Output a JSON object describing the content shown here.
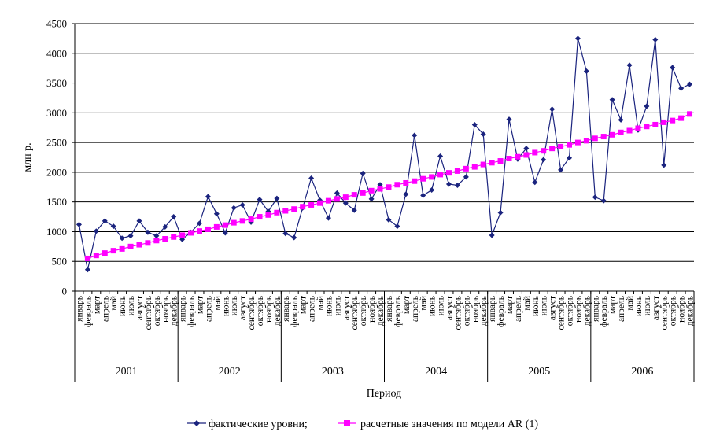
{
  "chart_data": {
    "type": "line",
    "ylabel": "млн р.",
    "xlabel": "Период",
    "ylim": [
      0,
      4500
    ],
    "yticks": [
      0,
      500,
      1000,
      1500,
      2000,
      2500,
      3000,
      3500,
      4000,
      4500
    ],
    "grid": "horizontal",
    "legend_position": "bottom",
    "years": [
      "2001",
      "2002",
      "2003",
      "2004",
      "2005",
      "2006"
    ],
    "months": [
      "январь",
      "февраль",
      "март",
      "апрель",
      "май",
      "июнь",
      "июль",
      "август",
      "сентябрь",
      "октябрь",
      "ноябрь",
      "декабрь"
    ],
    "series": [
      {
        "name": "фактические уровни;",
        "color": "#1a237e",
        "marker": "diamond",
        "values": [
          1120,
          360,
          1010,
          1180,
          1090,
          890,
          930,
          1180,
          990,
          930,
          1080,
          1250,
          870,
          990,
          1140,
          1590,
          1300,
          980,
          1400,
          1450,
          1160,
          1540,
          1340,
          1560,
          970,
          900,
          1400,
          1900,
          1530,
          1230,
          1650,
          1480,
          1360,
          1980,
          1550,
          1790,
          1200,
          1090,
          1630,
          2620,
          1610,
          1700,
          2270,
          1800,
          1780,
          1920,
          2800,
          2640,
          940,
          1320,
          2890,
          2220,
          2400,
          1830,
          2210,
          3060,
          2040,
          2240,
          4250,
          3700,
          1580,
          1520,
          3220,
          2880,
          3800,
          2710,
          3110,
          4230,
          2120,
          3760,
          3410,
          3480
        ]
      },
      {
        "name": "расчетные значения по модели AR (1)",
        "color": "#ff00ff",
        "marker": "square",
        "values": [
          null,
          550,
          600,
          640,
          680,
          710,
          750,
          780,
          810,
          850,
          880,
          910,
          940,
          980,
          1010,
          1040,
          1080,
          1110,
          1150,
          1180,
          1210,
          1250,
          1280,
          1320,
          1350,
          1380,
          1420,
          1450,
          1480,
          1520,
          1550,
          1580,
          1620,
          1650,
          1690,
          1720,
          1750,
          1790,
          1820,
          1850,
          1890,
          1920,
          1960,
          1990,
          2020,
          2060,
          2090,
          2130,
          2160,
          2190,
          2230,
          2260,
          2290,
          2330,
          2360,
          2400,
          2430,
          2460,
          2500,
          2530,
          2570,
          2600,
          2630,
          2670,
          2700,
          2740,
          2770,
          2800,
          2840,
          2870,
          2910,
          2980
        ]
      }
    ]
  }
}
